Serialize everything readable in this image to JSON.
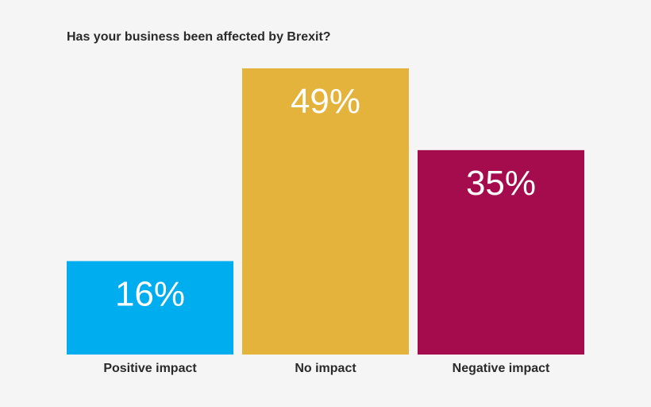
{
  "chart_data": {
    "type": "bar",
    "title": "Has your business been affected by Brexit?",
    "categories": [
      "Positive impact",
      "No impact",
      "Negative impact"
    ],
    "values": [
      16,
      49,
      35
    ],
    "data_labels": [
      "16%",
      "49%",
      "35%"
    ],
    "colors": [
      "#00adee",
      "#e3b33b",
      "#a50c4d"
    ],
    "ylim": [
      0,
      49
    ],
    "grid": false,
    "xlabel": "",
    "ylabel": ""
  }
}
